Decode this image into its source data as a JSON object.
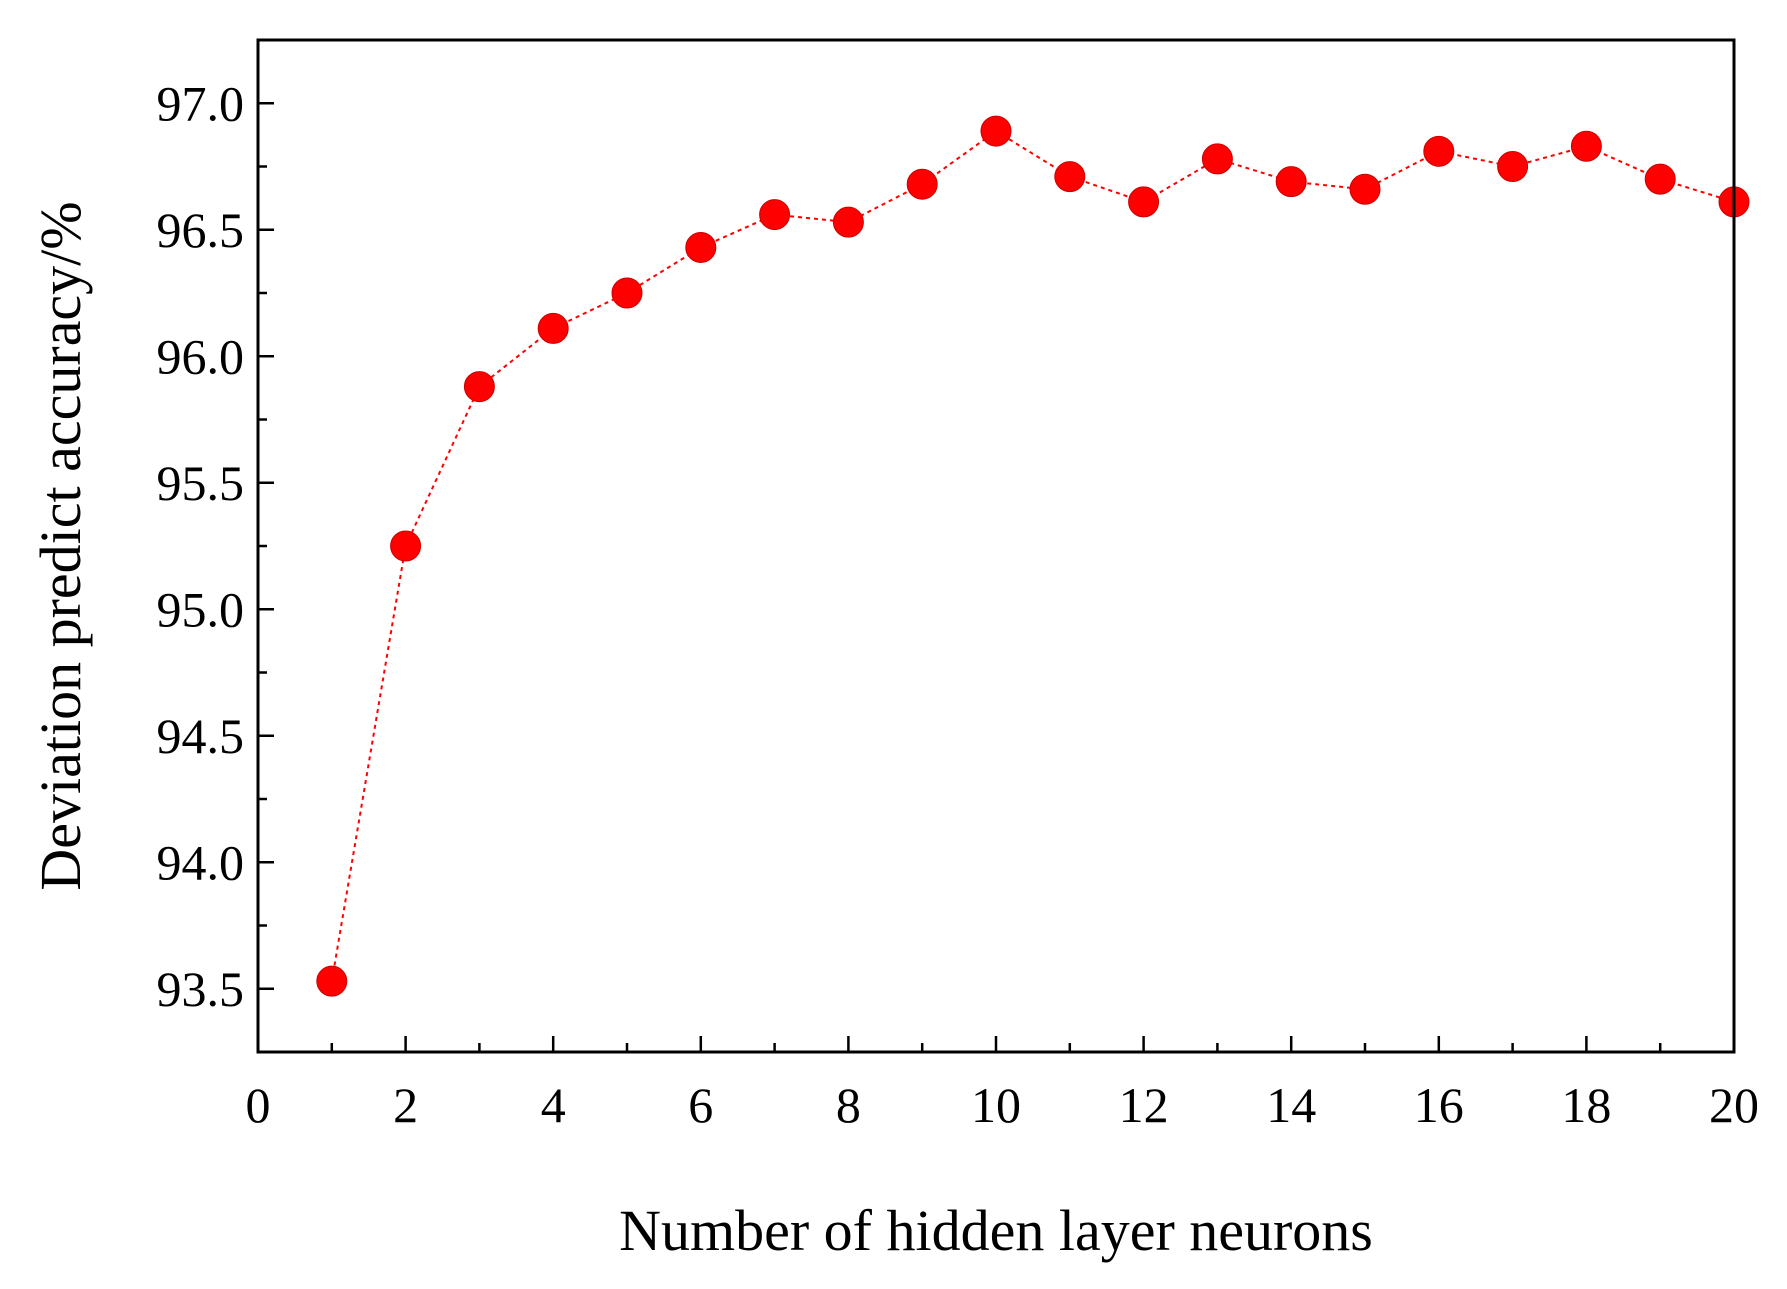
{
  "chart_data": {
    "type": "line",
    "title": "",
    "xlabel": "Number of hidden layer neurons",
    "ylabel": "Deviation predict accuracy/%",
    "xlim": [
      0,
      20
    ],
    "ylim": [
      93.25,
      97.25
    ],
    "xticks": [
      0,
      2,
      4,
      6,
      8,
      10,
      12,
      14,
      16,
      18,
      20
    ],
    "xtick_labels": [
      "0",
      "2",
      "4",
      "6",
      "8",
      "10",
      "12",
      "14",
      "16",
      "18",
      "20"
    ],
    "yticks": [
      93.5,
      94.0,
      94.5,
      95.0,
      95.5,
      96.0,
      96.5,
      97.0
    ],
    "ytick_labels": [
      "93.5",
      "94.0",
      "94.5",
      "95.0",
      "95.5",
      "96.0",
      "96.5",
      "97.0"
    ],
    "grid": false,
    "legend": null,
    "series": [
      {
        "color": "#ff0000",
        "line_style": "dashed",
        "marker": "circle",
        "x": [
          1,
          2,
          3,
          4,
          5,
          6,
          7,
          8,
          9,
          10,
          11,
          12,
          13,
          14,
          15,
          16,
          17,
          18,
          19,
          20
        ],
        "y": [
          93.53,
          95.25,
          95.88,
          96.11,
          96.25,
          96.43,
          96.56,
          96.53,
          96.68,
          96.89,
          96.71,
          96.61,
          96.78,
          96.69,
          96.66,
          96.81,
          96.75,
          96.83,
          96.7,
          96.61
        ]
      }
    ]
  }
}
